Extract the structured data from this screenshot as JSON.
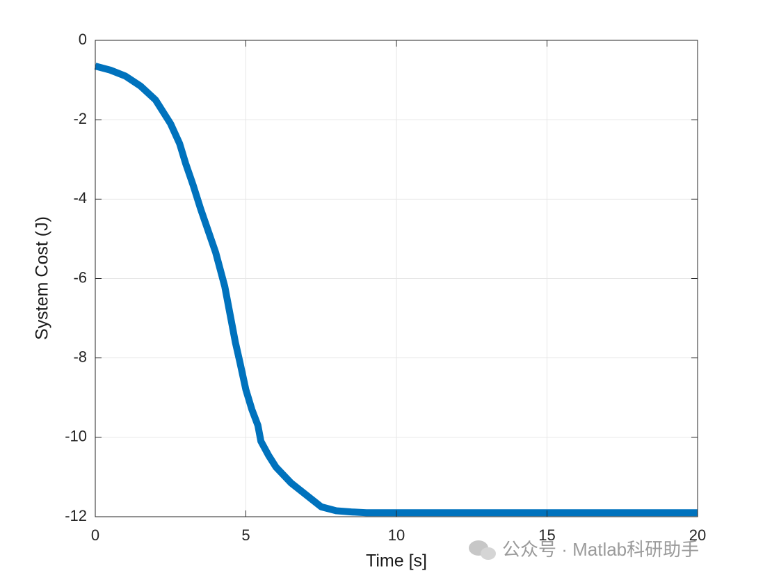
{
  "chart_data": {
    "type": "line",
    "xlabel": "Time [s]",
    "ylabel": "System Cost (J)",
    "watermark": "公众号 · Matlab科研助手",
    "x": [
      0,
      0.5,
      1,
      1.5,
      2,
      2.5,
      2.8,
      3,
      3.25,
      3.5,
      3.75,
      4,
      4.3,
      4.5,
      4.65,
      4.8,
      5,
      5.2,
      5.4,
      5.5,
      5.75,
      6,
      6.5,
      7,
      7.5,
      8,
      8.5,
      9,
      10,
      12,
      14,
      16,
      18,
      20
    ],
    "series": [
      {
        "name": "System Cost",
        "color": "#0072bd",
        "values": [
          -0.65,
          -0.75,
          -0.9,
          -1.15,
          -1.5,
          -2.1,
          -2.6,
          -3.1,
          -3.65,
          -4.25,
          -4.8,
          -5.35,
          -6.2,
          -7.0,
          -7.6,
          -8.1,
          -8.8,
          -9.3,
          -9.7,
          -10.1,
          -10.45,
          -10.75,
          -11.15,
          -11.45,
          -11.75,
          -11.85,
          -11.88,
          -11.9,
          -11.9,
          -11.9,
          -11.9,
          -11.9,
          -11.9,
          -11.9
        ]
      }
    ],
    "xlim": [
      0,
      20
    ],
    "xticks": [
      0,
      5,
      10,
      15,
      20
    ],
    "ylim": [
      -12,
      0
    ],
    "yticks": [
      -12,
      -10,
      -8,
      -6,
      -4,
      -2,
      0
    ],
    "grid": true
  }
}
